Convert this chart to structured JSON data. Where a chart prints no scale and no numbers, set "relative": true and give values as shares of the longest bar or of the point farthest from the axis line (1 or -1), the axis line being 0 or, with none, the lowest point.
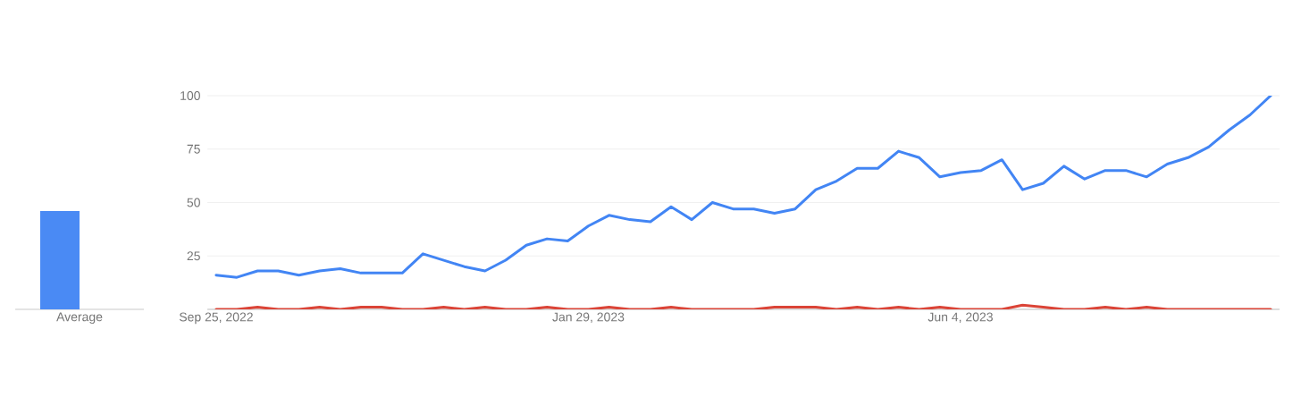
{
  "chart_data": [
    {
      "type": "bar",
      "categories": [
        "Average"
      ],
      "series": [
        {
          "color": "#4a8af4",
          "values": [
            1
          ]
        }
      ],
      "relative": true,
      "grid": false,
      "legend": false
    },
    {
      "type": "line",
      "x": [
        "2022-09-25",
        "2022-10-02",
        "2022-10-09",
        "2022-10-16",
        "2022-10-23",
        "2022-10-30",
        "2022-11-06",
        "2022-11-13",
        "2022-11-20",
        "2022-11-27",
        "2022-12-04",
        "2022-12-11",
        "2022-12-18",
        "2022-12-25",
        "2023-01-01",
        "2023-01-08",
        "2023-01-15",
        "2023-01-22",
        "2023-01-29",
        "2023-02-05",
        "2023-02-12",
        "2023-02-19",
        "2023-02-26",
        "2023-03-05",
        "2023-03-12",
        "2023-03-19",
        "2023-03-26",
        "2023-04-02",
        "2023-04-09",
        "2023-04-16",
        "2023-04-23",
        "2023-04-30",
        "2023-05-07",
        "2023-05-14",
        "2023-05-21",
        "2023-05-28",
        "2023-06-04",
        "2023-06-11",
        "2023-06-18",
        "2023-06-25",
        "2023-07-02",
        "2023-07-09",
        "2023-07-16",
        "2023-07-23",
        "2023-07-30",
        "2023-08-06",
        "2023-08-13",
        "2023-08-20",
        "2023-08-27",
        "2023-09-03",
        "2023-09-10",
        "2023-09-17"
      ],
      "series": [
        {
          "color": "#4285f4",
          "values": [
            16,
            15,
            18,
            18,
            16,
            18,
            19,
            17,
            17,
            17,
            26,
            23,
            20,
            18,
            23,
            30,
            33,
            32,
            39,
            44,
            42,
            41,
            48,
            42,
            50,
            47,
            47,
            45,
            47,
            56,
            60,
            66,
            66,
            74,
            71,
            62,
            64,
            65,
            70,
            56,
            59,
            67,
            61,
            65,
            65,
            62,
            68,
            71,
            76,
            84,
            91,
            100
          ]
        },
        {
          "color": "#db4437",
          "values": [
            0,
            0,
            1,
            0,
            0,
            1,
            0,
            1,
            1,
            0,
            0,
            1,
            0,
            1,
            0,
            0,
            1,
            0,
            0,
            1,
            0,
            0,
            1,
            0,
            0,
            0,
            0,
            1,
            1,
            1,
            0,
            1,
            0,
            1,
            0,
            1,
            0,
            0,
            0,
            2,
            1,
            0,
            0,
            1,
            0,
            1,
            0,
            0,
            0,
            0,
            0,
            0
          ]
        }
      ],
      "xlim": [
        "2022-09-22",
        "2023-09-20"
      ],
      "xticks": [
        {
          "value": "2022-09-25",
          "label": "Sep 25, 2022"
        },
        {
          "value": "2023-01-29",
          "label": "Jan 29, 2023"
        },
        {
          "value": "2023-06-04",
          "label": "Jun 4, 2023"
        }
      ],
      "ylim": [
        0,
        100
      ],
      "yticks": [
        {
          "value": 0,
          "label": null
        },
        25,
        50,
        75,
        100
      ],
      "grid": "y",
      "legend": false,
      "marker": "none",
      "line_style": "solid"
    }
  ]
}
